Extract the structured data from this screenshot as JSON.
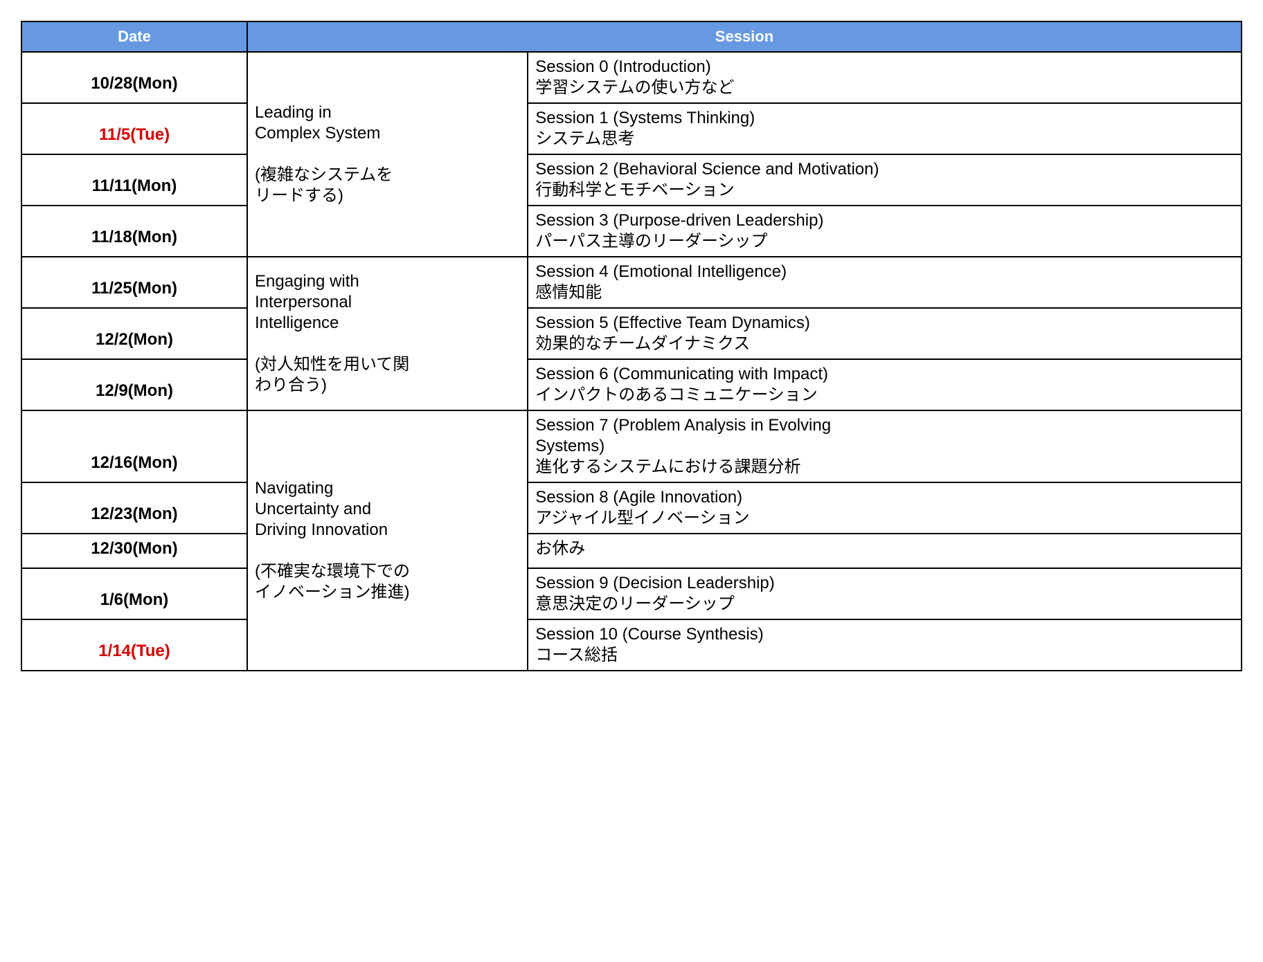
{
  "colors": {
    "header_bg": "#6699e0",
    "header_fg": "#ffffff",
    "border": "#000000",
    "text": "#000000",
    "highlight": "#d40000",
    "background": "#ffffff"
  },
  "typography": {
    "header_fontsize_pt": 16,
    "body_fontsize_pt": 18,
    "date_fontweight": "700",
    "header_fontweight": "700"
  },
  "columns": {
    "date_label": "Date",
    "session_label": "Session"
  },
  "column_widths_pct": [
    18.5,
    23,
    58.5
  ],
  "modules": [
    {
      "title": "Leading in\nComplex System\n\n(複雑なシステムを\nリードする)",
      "rows": [
        {
          "date": "10/28(Mon)",
          "highlight": false,
          "session": "Session 0 (Introduction)\n学習システムの使い方など"
        },
        {
          "date": "11/5(Tue)",
          "highlight": true,
          "session": "Session 1 (Systems Thinking)\nシステム思考"
        },
        {
          "date": "11/11(Mon)",
          "highlight": false,
          "session": "Session 2 (Behavioral Science and Motivation)\n行動科学とモチベーション"
        },
        {
          "date": "11/18(Mon)",
          "highlight": false,
          "session": "Session 3 (Purpose-driven Leadership)\nパーパス主導のリーダーシップ"
        }
      ]
    },
    {
      "title": "Engaging with\nInterpersonal\nIntelligence\n\n(対人知性を用いて関\nわり合う)",
      "rows": [
        {
          "date": "11/25(Mon)",
          "highlight": false,
          "session": "Session 4 (Emotional Intelligence)\n感情知能"
        },
        {
          "date": "12/2(Mon)",
          "highlight": false,
          "session": "Session 5 (Effective Team Dynamics)\n効果的なチームダイナミクス"
        },
        {
          "date": "12/9(Mon)",
          "highlight": false,
          "session": "Session 6 (Communicating with Impact)\nインパクトのあるコミュニケーション"
        }
      ]
    },
    {
      "title": "Navigating\nUncertainty and\nDriving Innovation\n\n(不確実な環境下での\nイノベーション推進)",
      "rows": [
        {
          "date": "12/16(Mon)",
          "highlight": false,
          "session": "Session 7 (Problem Analysis in Evolving\nSystems)\n進化するシステムにおける課題分析"
        },
        {
          "date": "12/23(Mon)",
          "highlight": false,
          "session": "Session 8 (Agile Innovation)\nアジャイル型イノベーション"
        },
        {
          "date": "12/30(Mon)",
          "highlight": false,
          "session": "お休み"
        },
        {
          "date": "1/6(Mon)",
          "highlight": false,
          "session": "Session 9 (Decision Leadership)\n意思決定のリーダーシップ"
        },
        {
          "date": "1/14(Tue)",
          "highlight": true,
          "session": "Session 10 (Course Synthesis)\nコース総括"
        }
      ]
    }
  ]
}
